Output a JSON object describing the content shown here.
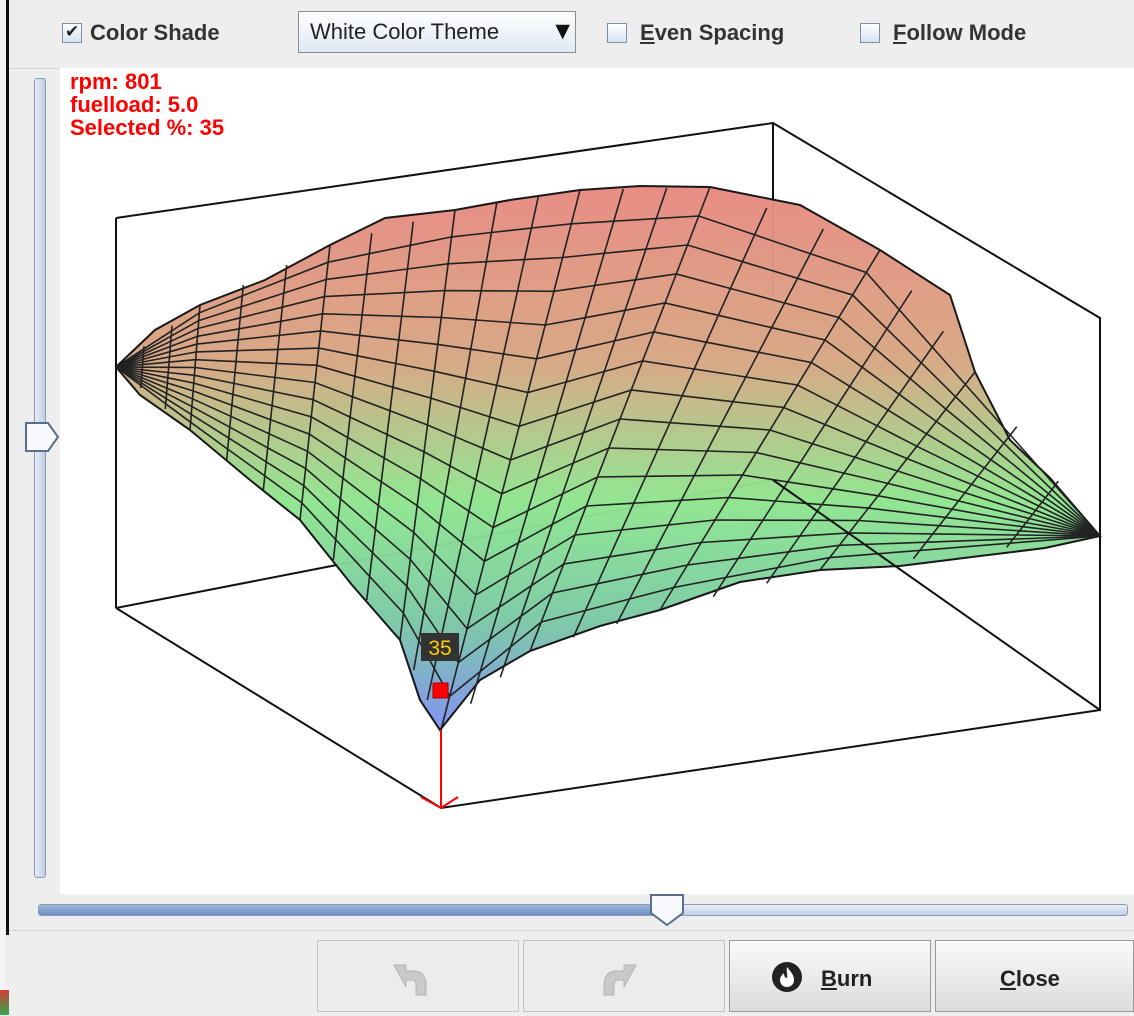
{
  "toolbar": {
    "color_shade": {
      "label": "Color Shade",
      "checked": true
    },
    "theme": {
      "selected": "White Color Theme"
    },
    "even_spacing": {
      "label_key": "E",
      "label_rest": "ven Spacing",
      "checked": false
    },
    "follow_mode": {
      "label_key": "F",
      "label_rest": "ollow Mode",
      "checked": false
    }
  },
  "readout": {
    "rpm": "rpm: 801",
    "fuelload": "fuelload: 5.0",
    "selected": "Selected %: 35"
  },
  "plot": {
    "selected_value": "35",
    "colors": {
      "high": "#e98a82",
      "mid": "#8fe68f",
      "low": "#7f8ff2",
      "marker": "#ff0000"
    }
  },
  "sliders": {
    "vertical_level": 0.55,
    "horizontal_level": 0.57
  },
  "buttons": {
    "undo": {
      "icon": "undo-icon",
      "enabled": false
    },
    "redo": {
      "icon": "redo-icon",
      "enabled": false
    },
    "burn": {
      "key": "B",
      "rest": "urn",
      "icon": "burn-icon"
    },
    "close": {
      "key": "C",
      "rest": "lose"
    }
  }
}
